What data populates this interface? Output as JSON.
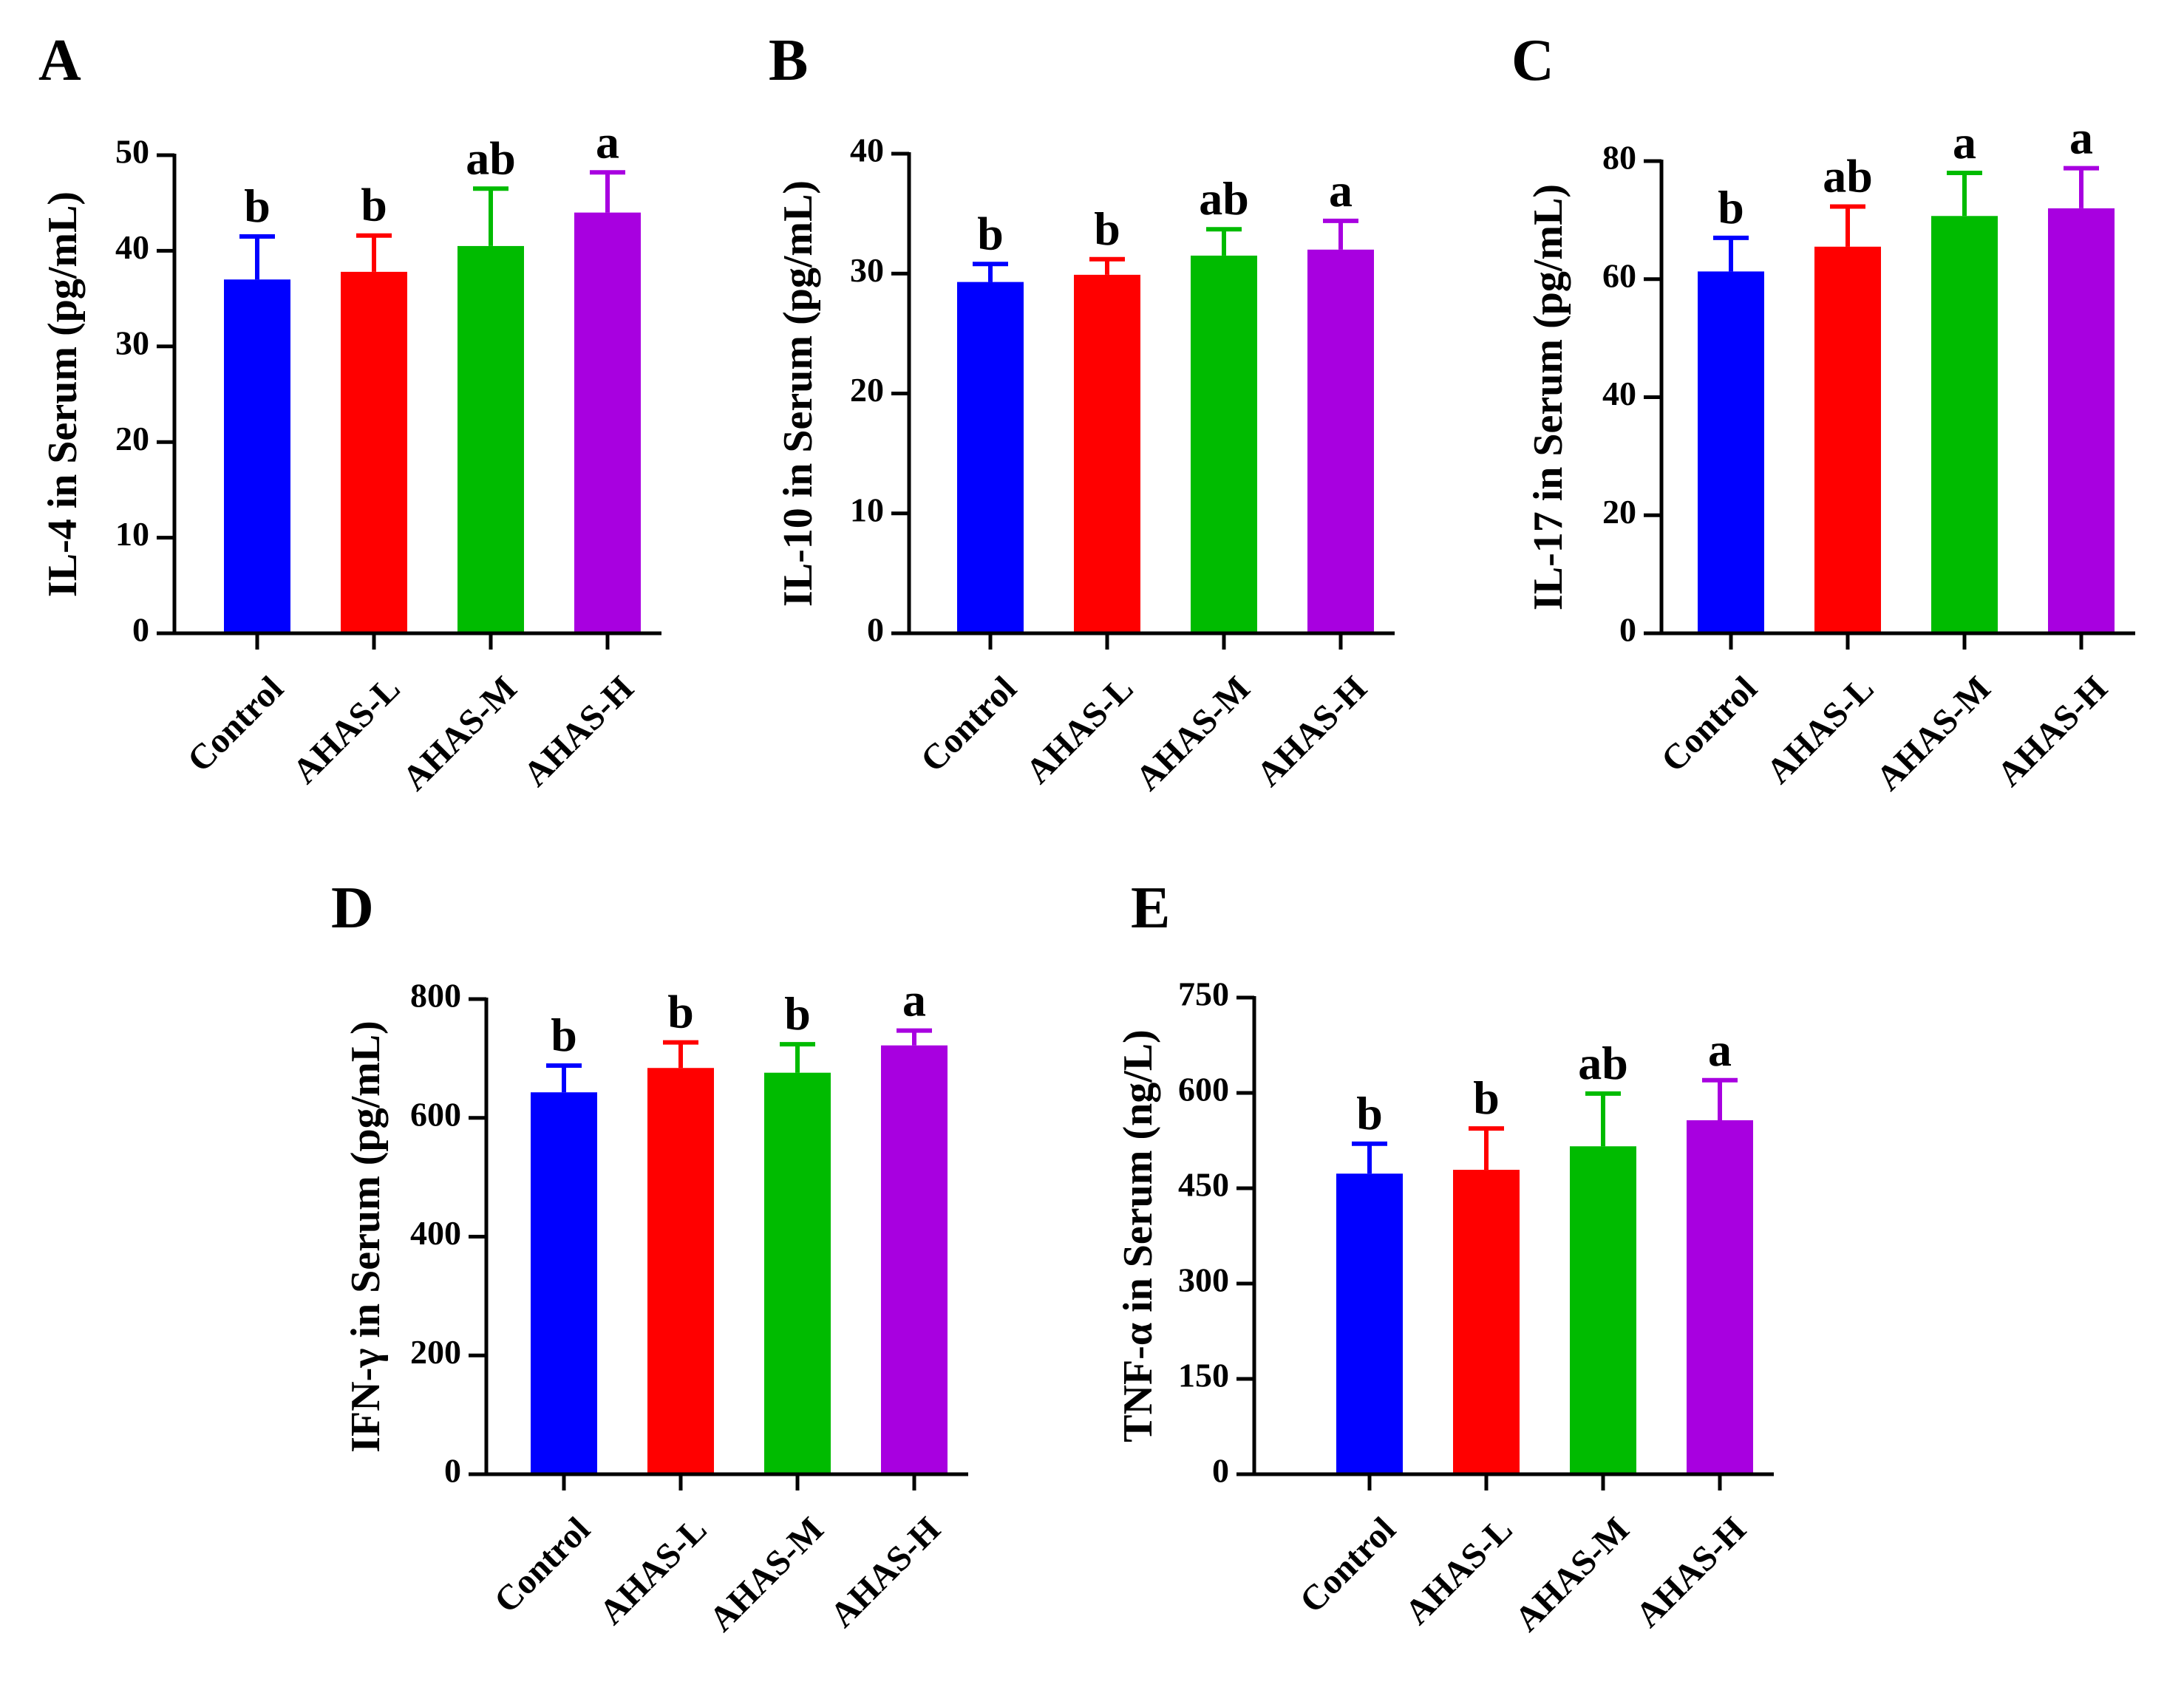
{
  "colors": {
    "Control": "#0000ff",
    "AHAS-L": "#ff0000",
    "AHAS-M": "#00bb00",
    "AHAS-H": "#a800e0"
  },
  "chart_data": [
    {
      "type": "bar",
      "panel": "A",
      "ylabel": "IL-4 in Serum (pg/mL)",
      "categories": [
        "Control",
        "AHAS-L",
        "AHAS-M",
        "AHAS-H"
      ],
      "values": [
        37,
        37.8,
        40.5,
        44
      ],
      "errors": [
        4.5,
        3.8,
        6,
        4.2
      ],
      "significance": [
        "b",
        "b",
        "ab",
        "a"
      ],
      "ylim": [
        0,
        50
      ],
      "yticks": [
        "0",
        "10",
        "20",
        "30",
        "40",
        "50"
      ]
    },
    {
      "type": "bar",
      "panel": "B",
      "ylabel": "IL-10 in Serum (pg/mL)",
      "categories": [
        "Control",
        "AHAS-L",
        "AHAS-M",
        "AHAS-H"
      ],
      "values": [
        29.3,
        29.9,
        31.5,
        32
      ],
      "errors": [
        1.5,
        1.3,
        2.2,
        2.4
      ],
      "significance": [
        "b",
        "b",
        "ab",
        "a"
      ],
      "ylim": [
        0,
        40
      ],
      "yticks": [
        "0",
        "10",
        "20",
        "30",
        "40"
      ]
    },
    {
      "type": "bar",
      "panel": "C",
      "ylabel": "IL-17 in Serum (pg/mL)",
      "categories": [
        "Control",
        "AHAS-L",
        "AHAS-M",
        "AHAS-H"
      ],
      "values": [
        61.3,
        65.5,
        70.7,
        72
      ],
      "errors": [
        5.7,
        6.8,
        7.3,
        6.8
      ],
      "significance": [
        "b",
        "ab",
        "a",
        "a"
      ],
      "ylim": [
        0,
        80
      ],
      "yticks": [
        "0",
        "20",
        "40",
        "60",
        "80"
      ]
    },
    {
      "type": "bar",
      "panel": "D",
      "ylabel": "IFN-γ in Serum (pg/mL)",
      "categories": [
        "Control",
        "AHAS-L",
        "AHAS-M",
        "AHAS-H"
      ],
      "values": [
        643,
        684,
        676,
        722
      ],
      "errors": [
        45,
        43,
        48,
        25
      ],
      "significance": [
        "b",
        "b",
        "b",
        "a"
      ],
      "ylim": [
        0,
        800
      ],
      "yticks": [
        "0",
        "200",
        "400",
        "600",
        "800"
      ]
    },
    {
      "type": "bar",
      "panel": "E",
      "ylabel": "TNF-α in Serum (ng/L)",
      "categories": [
        "Control",
        "AHAS-L",
        "AHAS-M",
        "AHAS-H"
      ],
      "values": [
        473,
        479,
        516,
        557
      ],
      "errors": [
        47,
        65,
        83,
        63
      ],
      "significance": [
        "b",
        "b",
        "ab",
        "a"
      ],
      "ylim": [
        0,
        750
      ],
      "yticks": [
        "0",
        "150",
        "300",
        "450",
        "600",
        "750"
      ]
    }
  ]
}
